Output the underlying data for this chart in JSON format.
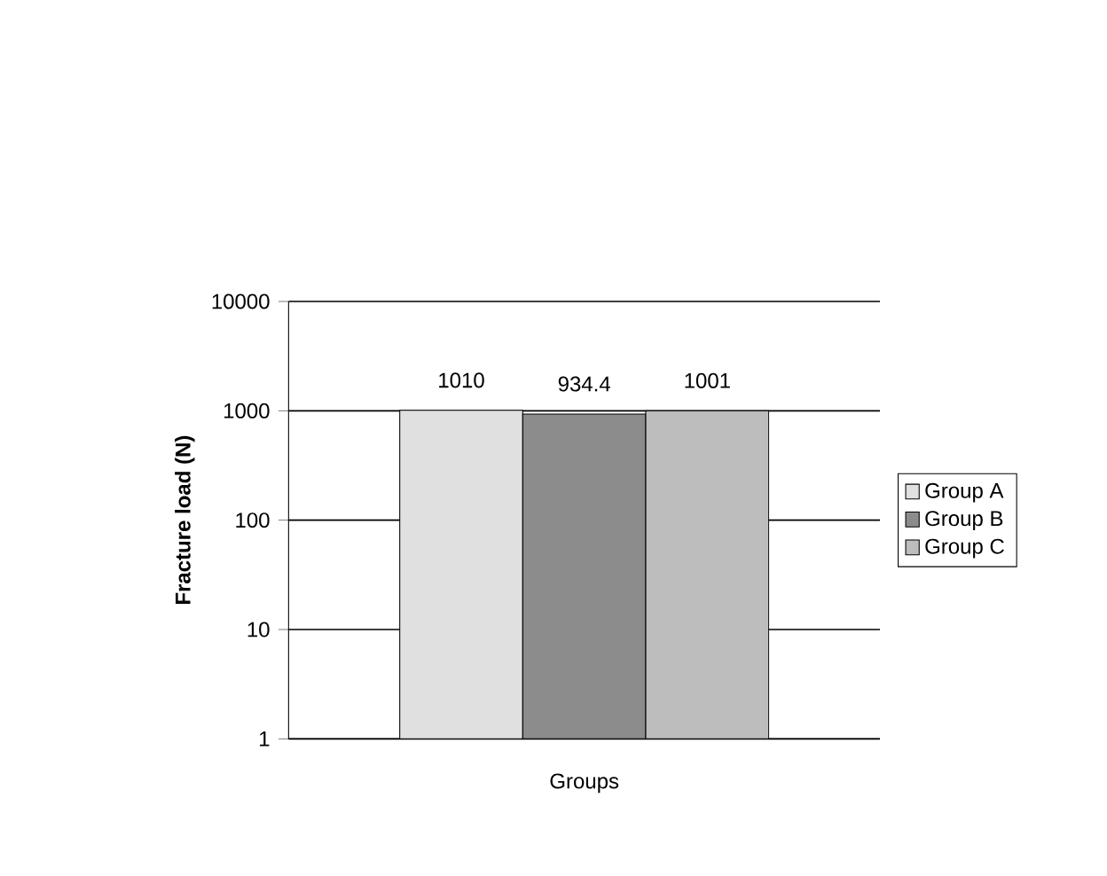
{
  "chart_data": {
    "type": "bar",
    "xlabel": "Groups",
    "ylabel": "Fracture load (N)",
    "categories": [
      null
    ],
    "series": [
      {
        "name": "Group A",
        "color": "#e0e0e0",
        "values": [
          1010
        ]
      },
      {
        "name": "Group B",
        "color": "#8c8c8c",
        "values": [
          934.4
        ]
      },
      {
        "name": "Group C",
        "color": "#bdbdbd",
        "values": [
          1001
        ]
      }
    ],
    "log": "y",
    "ylim": [
      1,
      10000
    ],
    "yticks": [
      1,
      10,
      100,
      1000,
      10000
    ],
    "grid": "y",
    "legend": "right",
    "data_labels": true
  }
}
